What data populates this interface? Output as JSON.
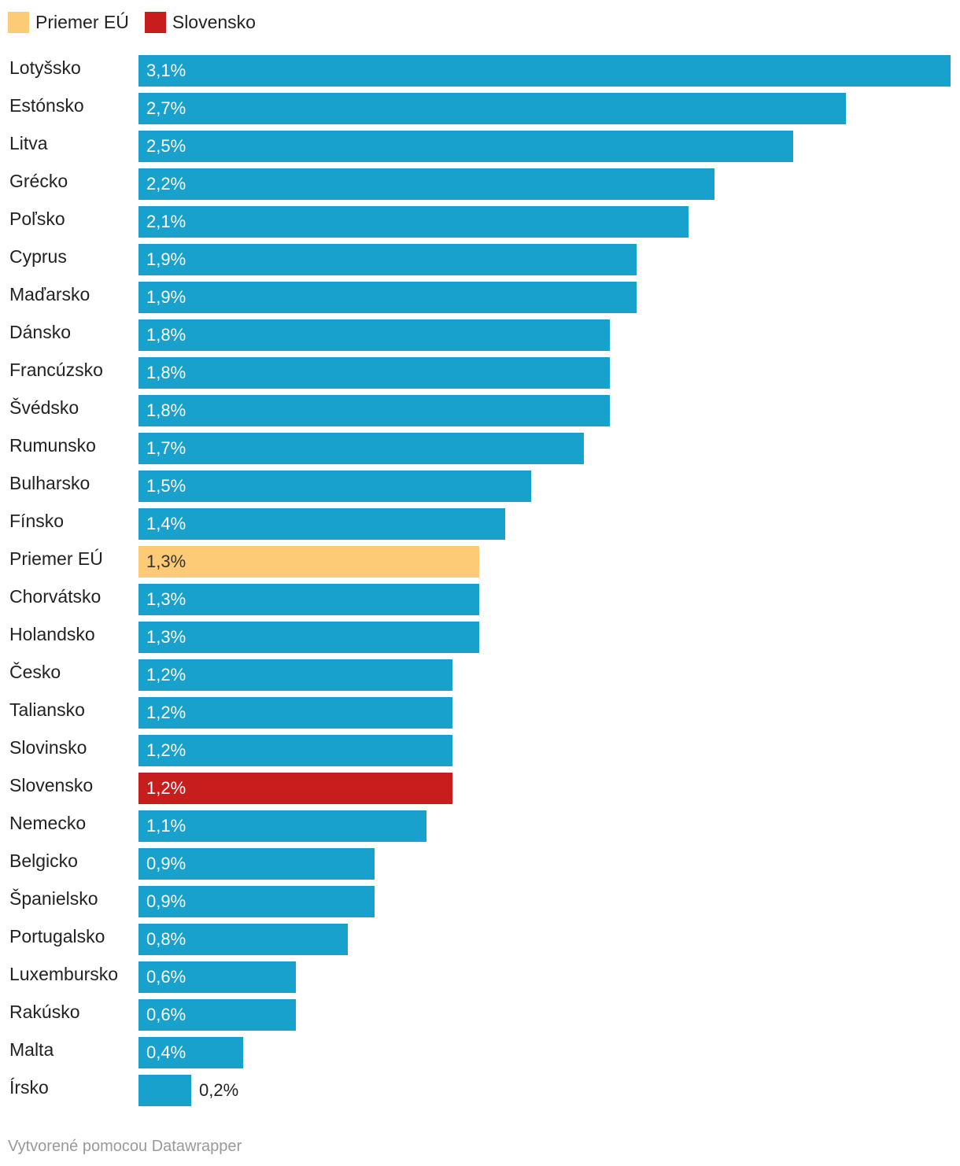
{
  "legend": [
    {
      "label": "Priemer EÚ",
      "color": "#fdca75"
    },
    {
      "label": "Slovensko",
      "color": "#c71e1d"
    }
  ],
  "colors": {
    "default": "#18a1cd",
    "average": "#fdca75",
    "slovakia": "#c71e1d"
  },
  "chart_data": {
    "type": "bar",
    "orientation": "horizontal",
    "categories": [
      "Lotyšsko",
      "Estónsko",
      "Litva",
      "Grécko",
      "Poľsko",
      "Cyprus",
      "Maďarsko",
      "Dánsko",
      "Francúzsko",
      "Švédsko",
      "Rumunsko",
      "Bulharsko",
      "Fínsko",
      "Priemer EÚ",
      "Chorvátsko",
      "Holandsko",
      "Česko",
      "Taliansko",
      "Slovinsko",
      "Slovensko",
      "Nemecko",
      "Belgicko",
      "Španielsko",
      "Portugalsko",
      "Luxembursko",
      "Rakúsko",
      "Malta",
      "Írsko"
    ],
    "values": [
      3.1,
      2.7,
      2.5,
      2.2,
      2.1,
      1.9,
      1.9,
      1.8,
      1.8,
      1.8,
      1.7,
      1.5,
      1.4,
      1.3,
      1.3,
      1.3,
      1.2,
      1.2,
      1.2,
      1.2,
      1.1,
      0.9,
      0.9,
      0.8,
      0.6,
      0.6,
      0.4,
      0.2
    ],
    "value_labels": [
      "3,1%",
      "2,7%",
      "2,5%",
      "2,2%",
      "2,1%",
      "1,9%",
      "1,9%",
      "1,8%",
      "1,8%",
      "1,8%",
      "1,7%",
      "1,5%",
      "1,4%",
      "1,3%",
      "1,3%",
      "1,3%",
      "1,2%",
      "1,2%",
      "1,2%",
      "1,2%",
      "1,1%",
      "0,9%",
      "0,9%",
      "0,8%",
      "0,6%",
      "0,6%",
      "0,4%",
      "0,2%"
    ],
    "highlight": {
      "Priemer EÚ": "average",
      "Slovensko": "slovakia"
    },
    "xlim": [
      0,
      3.1
    ],
    "grid": false,
    "legend_position": "top-left"
  },
  "footer": "Vytvorené pomocou Datawrapper"
}
